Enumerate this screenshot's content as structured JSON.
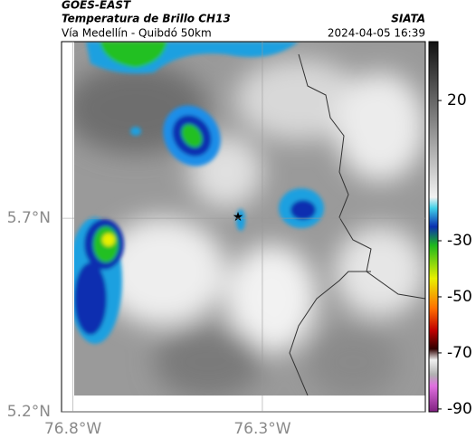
{
  "header": {
    "satellite": "GOES-EAST",
    "title": "Temperatura de Brillo CH13",
    "source": "SIATA",
    "subtitle": "Vía Medellín - Quibdó 50km",
    "timestamp": "2024-04-05 16:39"
  },
  "map": {
    "xlim": [
      -76.83,
      -75.87
    ],
    "ylim": [
      5.2,
      6.156
    ],
    "xticks": [
      {
        "value": -76.8,
        "label": "76.8°W"
      },
      {
        "value": -76.3,
        "label": "76.3°W"
      }
    ],
    "yticks": [
      {
        "value": 5.2,
        "label": "5.2°N"
      },
      {
        "value": 5.7,
        "label": "5.7°N"
      }
    ]
  },
  "colorbar": {
    "lim": [
      -91,
      41
    ],
    "ticks": [
      20,
      -30,
      -50,
      -70,
      -90
    ]
  }
}
